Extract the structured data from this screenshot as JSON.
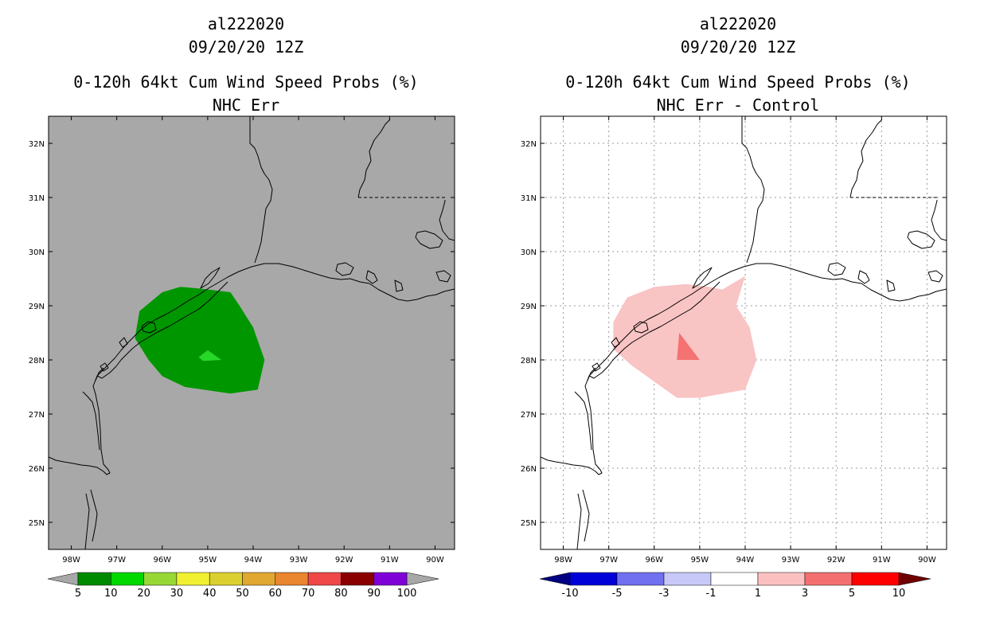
{
  "panels": [
    {
      "storm_id": "al222020",
      "datetime": "09/20/20 12Z",
      "product": "0-120h 64kt Cum Wind Speed Probs (%)",
      "subtitle": "NHC Err",
      "background": "#a8a8a8",
      "grid": false,
      "lat_labels": [
        "32N",
        "31N",
        "30N",
        "29N",
        "28N",
        "27N",
        "26N",
        "25N"
      ],
      "lon_labels": [
        "98W",
        "97W",
        "96W",
        "95W",
        "94W",
        "93W",
        "92W",
        "91W",
        "90W"
      ],
      "colorbar": {
        "colors": [
          "#008a00",
          "#00d800",
          "#98d834",
          "#f0f030",
          "#dcd030",
          "#e0a830",
          "#ea8530",
          "#f04848",
          "#8a0000",
          "#8000d8"
        ],
        "end_colors": [
          "#a8a8a8",
          "#a8a8a8"
        ],
        "labels": [
          "5",
          "10",
          "20",
          "30",
          "40",
          "50",
          "60",
          "70",
          "80",
          "90",
          "100"
        ]
      },
      "shapes": [
        {
          "fill": "#009600",
          "lonlat": [
            [
              -96.5,
              28.9
            ],
            [
              -96.0,
              29.25
            ],
            [
              -95.6,
              29.35
            ],
            [
              -95.2,
              29.32
            ],
            [
              -94.5,
              29.25
            ],
            [
              -94.3,
              29.0
            ],
            [
              -94.0,
              28.6
            ],
            [
              -93.75,
              28.0
            ],
            [
              -93.9,
              27.45
            ],
            [
              -94.5,
              27.38
            ],
            [
              -95.5,
              27.5
            ],
            [
              -96.0,
              27.7
            ],
            [
              -96.3,
              28.0
            ],
            [
              -96.6,
              28.4
            ]
          ]
        },
        {
          "fill": "#28d828",
          "lonlat": [
            [
              -95.2,
              28.05
            ],
            [
              -95.0,
              28.18
            ],
            [
              -94.7,
              28.0
            ],
            [
              -95.1,
              27.98
            ]
          ]
        }
      ]
    },
    {
      "storm_id": "al222020",
      "datetime": "09/20/20 12Z",
      "product": "0-120h 64kt Cum Wind Speed Probs (%)",
      "subtitle": "NHC Err - Control",
      "background": "#ffffff",
      "grid": true,
      "lat_labels": [
        "32N",
        "31N",
        "30N",
        "29N",
        "28N",
        "27N",
        "26N",
        "25N"
      ],
      "lon_labels": [
        "98W",
        "97W",
        "96W",
        "95W",
        "94W",
        "93W",
        "92W",
        "91W",
        "90W"
      ],
      "colorbar": {
        "colors": [
          "#0000d8",
          "#7070f0",
          "#c8c8f8",
          "#ffffff",
          "#fcc0c0",
          "#f47070",
          "#ff0000"
        ],
        "end_colors": [
          "#000080",
          "#700000"
        ],
        "labels": [
          "-10",
          "-5",
          "-3",
          "-1",
          "1",
          "3",
          "5",
          "10"
        ]
      },
      "shapes": [
        {
          "fill": "#f9c4c4",
          "lonlat": [
            [
              -96.6,
              29.15
            ],
            [
              -96.0,
              29.35
            ],
            [
              -95.3,
              29.4
            ],
            [
              -94.8,
              29.35
            ],
            [
              -94.5,
              29.3
            ],
            [
              -94.0,
              29.55
            ],
            [
              -94.2,
              29.0
            ],
            [
              -93.9,
              28.6
            ],
            [
              -93.75,
              28.0
            ],
            [
              -94.0,
              27.45
            ],
            [
              -95.0,
              27.3
            ],
            [
              -95.5,
              27.3
            ],
            [
              -96.0,
              27.6
            ],
            [
              -96.5,
              27.9
            ],
            [
              -96.9,
              28.2
            ],
            [
              -96.9,
              28.7
            ]
          ]
        },
        {
          "fill": "#f47272",
          "lonlat": [
            [
              -95.45,
              28.5
            ],
            [
              -95.0,
              28.0
            ],
            [
              -95.5,
              28.0
            ]
          ]
        }
      ]
    }
  ]
}
